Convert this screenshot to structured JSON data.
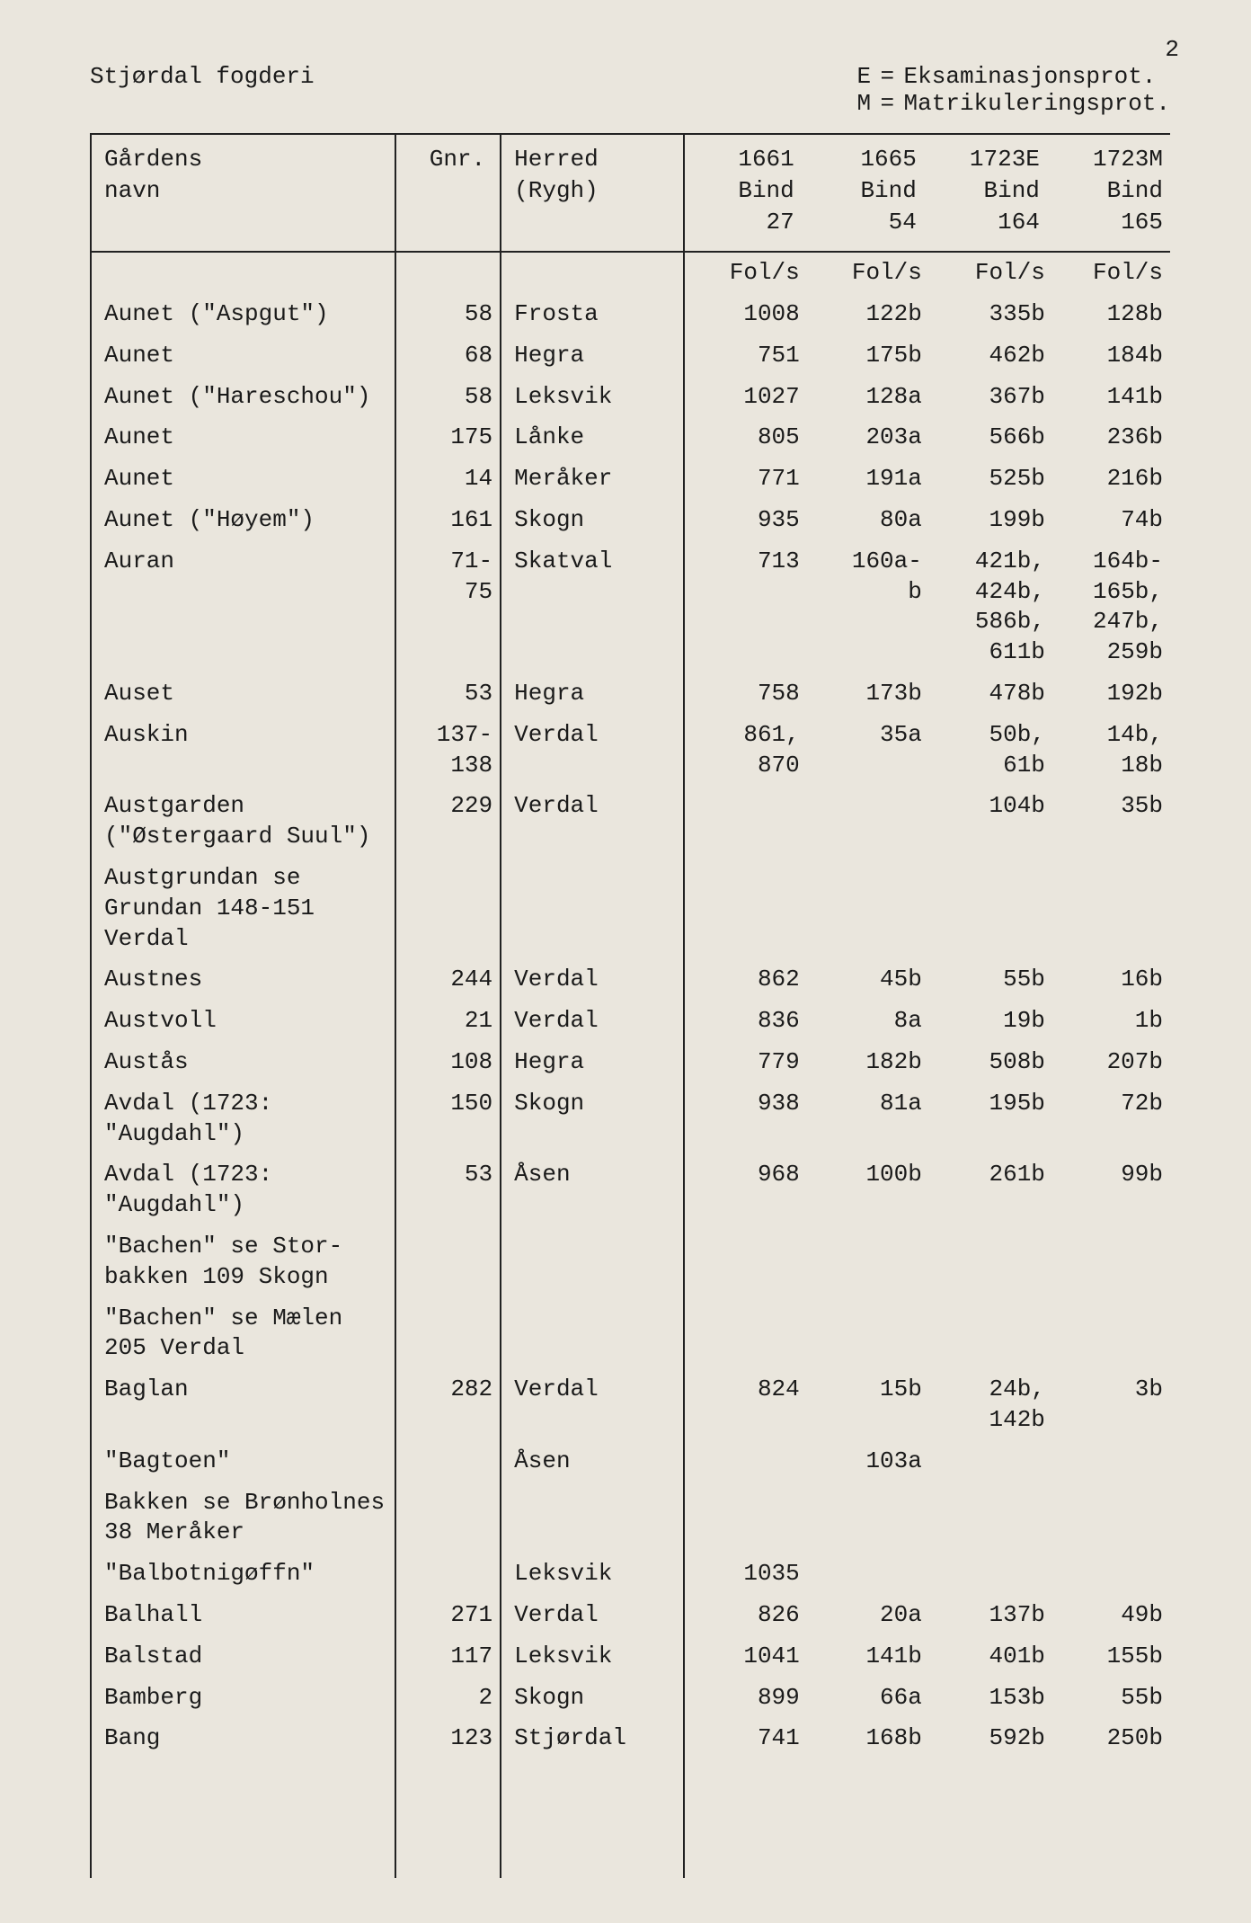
{
  "page_number": "2",
  "header": {
    "title": "Stjørdal fogderi",
    "legend": [
      {
        "key": "E",
        "eq": "=",
        "text": "Eksaminasjonsprot."
      },
      {
        "key": "M",
        "eq": "=",
        "text": "Matrikuleringsprot."
      }
    ]
  },
  "columns": {
    "name": "Gårdens\nnavn",
    "gnr": "Gnr.",
    "herred": "Herred\n(Rygh)",
    "c1661": "1661\nBind\n27",
    "c1665": "1665\nBind\n54",
    "c1723e": "1723E\nBind\n164",
    "c1723m": "1723M\nBind\n165"
  },
  "fols_row": {
    "name": "",
    "gnr": "",
    "herred": "",
    "c1661": "Fol/s",
    "c1665": "Fol/s",
    "c1723e": "Fol/s",
    "c1723m": "Fol/s"
  },
  "rows": [
    {
      "name": "Aunet (\"Aspgut\")",
      "gnr": "58",
      "herred": "Frosta",
      "c1661": "1008",
      "c1665": "122b",
      "c1723e": "335b",
      "c1723m": "128b"
    },
    {
      "name": "Aunet",
      "gnr": "68",
      "herred": "Hegra",
      "c1661": "751",
      "c1665": "175b",
      "c1723e": "462b",
      "c1723m": "184b"
    },
    {
      "name": "Aunet (\"Hareschou\")",
      "gnr": "58",
      "herred": "Leksvik",
      "c1661": "1027",
      "c1665": "128a",
      "c1723e": "367b",
      "c1723m": "141b"
    },
    {
      "name": "Aunet",
      "gnr": "175",
      "herred": "Lånke",
      "c1661": "805",
      "c1665": "203a",
      "c1723e": "566b",
      "c1723m": "236b"
    },
    {
      "name": "Aunet",
      "gnr": "14",
      "herred": "Meråker",
      "c1661": "771",
      "c1665": "191a",
      "c1723e": "525b",
      "c1723m": "216b"
    },
    {
      "name": "Aunet (\"Høyem\")",
      "gnr": "161",
      "herred": "Skogn",
      "c1661": "935",
      "c1665": "80a",
      "c1723e": "199b",
      "c1723m": "74b"
    },
    {
      "name": "Auran",
      "gnr": "71-\n75",
      "herred": "Skatval",
      "c1661": "713",
      "c1665": "160a-\nb",
      "c1723e": "421b,\n424b,\n586b,\n611b",
      "c1723m": "164b-\n165b,\n247b,\n259b"
    },
    {
      "name": "Auset",
      "gnr": "53",
      "herred": "Hegra",
      "c1661": "758",
      "c1665": "173b",
      "c1723e": "478b",
      "c1723m": "192b"
    },
    {
      "name": "Auskin",
      "gnr": "137-\n138",
      "herred": "Verdal",
      "c1661": "861,\n870",
      "c1665": "35a",
      "c1723e": "50b,\n61b",
      "c1723m": "14b,\n18b"
    },
    {
      "name": "Austgarden\n(\"Østergaard Suul\")",
      "gnr": "229",
      "herred": "Verdal",
      "c1661": "",
      "c1665": "",
      "c1723e": "104b",
      "c1723m": "35b"
    },
    {
      "name": "Austgrundan se\nGrundan 148-151\nVerdal",
      "gnr": "",
      "herred": "",
      "c1661": "",
      "c1665": "",
      "c1723e": "",
      "c1723m": ""
    },
    {
      "name": "Austnes",
      "gnr": "244",
      "herred": "Verdal",
      "c1661": "862",
      "c1665": "45b",
      "c1723e": "55b",
      "c1723m": "16b"
    },
    {
      "name": "Austvoll",
      "gnr": "21",
      "herred": "Verdal",
      "c1661": "836",
      "c1665": "8a",
      "c1723e": "19b",
      "c1723m": "1b"
    },
    {
      "name": "Austås",
      "gnr": "108",
      "herred": "Hegra",
      "c1661": "779",
      "c1665": "182b",
      "c1723e": "508b",
      "c1723m": "207b"
    },
    {
      "name": "Avdal (1723:\n\"Augdahl\")",
      "gnr": "150",
      "herred": "Skogn",
      "c1661": "938",
      "c1665": "81a",
      "c1723e": "195b",
      "c1723m": "72b"
    },
    {
      "name": "Avdal (1723:\n\"Augdahl\")",
      "gnr": "53",
      "herred": "Åsen",
      "c1661": "968",
      "c1665": "100b",
      "c1723e": "261b",
      "c1723m": "99b"
    },
    {
      "name": "\"Bachen\" se Stor-\nbakken 109 Skogn",
      "gnr": "",
      "herred": "",
      "c1661": "",
      "c1665": "",
      "c1723e": "",
      "c1723m": ""
    },
    {
      "name": "\"Bachen\" se Mælen\n205 Verdal",
      "gnr": "",
      "herred": "",
      "c1661": "",
      "c1665": "",
      "c1723e": "",
      "c1723m": ""
    },
    {
      "name": "Baglan",
      "gnr": "282",
      "herred": "Verdal",
      "c1661": "824",
      "c1665": "15b",
      "c1723e": "24b,\n142b",
      "c1723m": "3b"
    },
    {
      "name": "\"Bagtoen\"",
      "gnr": "",
      "herred": "Åsen",
      "c1661": "",
      "c1665": "103a",
      "c1723e": "",
      "c1723m": ""
    },
    {
      "name": "Bakken se Brønholnes\n38 Meråker",
      "gnr": "",
      "herred": "",
      "c1661": "",
      "c1665": "",
      "c1723e": "",
      "c1723m": ""
    },
    {
      "name": "\"Balbotnigøffn\"",
      "gnr": "",
      "herred": "Leksvik",
      "c1661": "1035",
      "c1665": "",
      "c1723e": "",
      "c1723m": ""
    },
    {
      "name": "Balhall",
      "gnr": "271",
      "herred": "Verdal",
      "c1661": "826",
      "c1665": "20a",
      "c1723e": "137b",
      "c1723m": "49b"
    },
    {
      "name": "Balstad",
      "gnr": "117",
      "herred": "Leksvik",
      "c1661": "1041",
      "c1665": "141b",
      "c1723e": "401b",
      "c1723m": "155b"
    },
    {
      "name": "Bamberg",
      "gnr": "2",
      "herred": "Skogn",
      "c1661": "899",
      "c1665": "66a",
      "c1723e": "153b",
      "c1723m": "55b"
    },
    {
      "name": "Bang",
      "gnr": "123",
      "herred": "Stjørdal",
      "c1661": "741",
      "c1665": "168b",
      "c1723e": "592b",
      "c1723m": "250b"
    }
  ]
}
